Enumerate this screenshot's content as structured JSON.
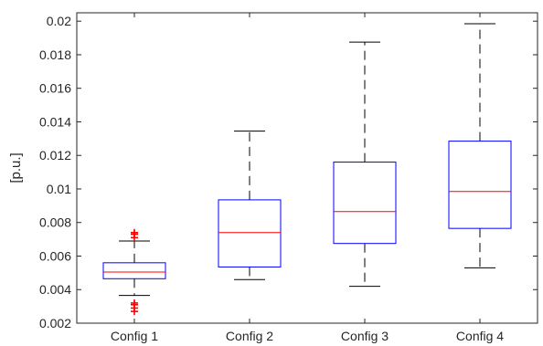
{
  "chart_data": {
    "type": "box",
    "title": "",
    "xlabel": "",
    "ylabel": "[p.u.]",
    "ylim": [
      0.002,
      0.0205
    ],
    "yticks": [
      0.002,
      0.004,
      0.006,
      0.008,
      0.01,
      0.012,
      0.014,
      0.016,
      0.018,
      0.02
    ],
    "ytick_labels": [
      "0.002",
      "0.004",
      "0.006",
      "0.008",
      "0.01",
      "0.012",
      "0.014",
      "0.016",
      "0.018",
      "0.02"
    ],
    "grid": false,
    "categories": [
      "Config 1",
      "Config 2",
      "Config 3",
      "Config 4"
    ],
    "boxes": [
      {
        "whisker_low": 0.00365,
        "q1": 0.00465,
        "median": 0.00505,
        "q3": 0.0056,
        "whisker_high": 0.0069,
        "outliers": [
          0.0027,
          0.0029,
          0.0031,
          0.0032,
          0.0071,
          0.0073,
          0.0074
        ]
      },
      {
        "whisker_low": 0.0046,
        "q1": 0.00535,
        "median": 0.0074,
        "q3": 0.00935,
        "whisker_high": 0.01345,
        "outliers": []
      },
      {
        "whisker_low": 0.0042,
        "q1": 0.00675,
        "median": 0.00865,
        "q3": 0.0116,
        "whisker_high": 0.01875,
        "outliers": []
      },
      {
        "whisker_low": 0.0053,
        "q1": 0.00765,
        "median": 0.00985,
        "q3": 0.01285,
        "whisker_high": 0.01985,
        "outliers": []
      }
    ],
    "colors": {
      "box": "#0000ff",
      "median": "#ff0000",
      "whisker": "#000000",
      "outlier": "#ff0000",
      "axis": "#262626"
    }
  }
}
